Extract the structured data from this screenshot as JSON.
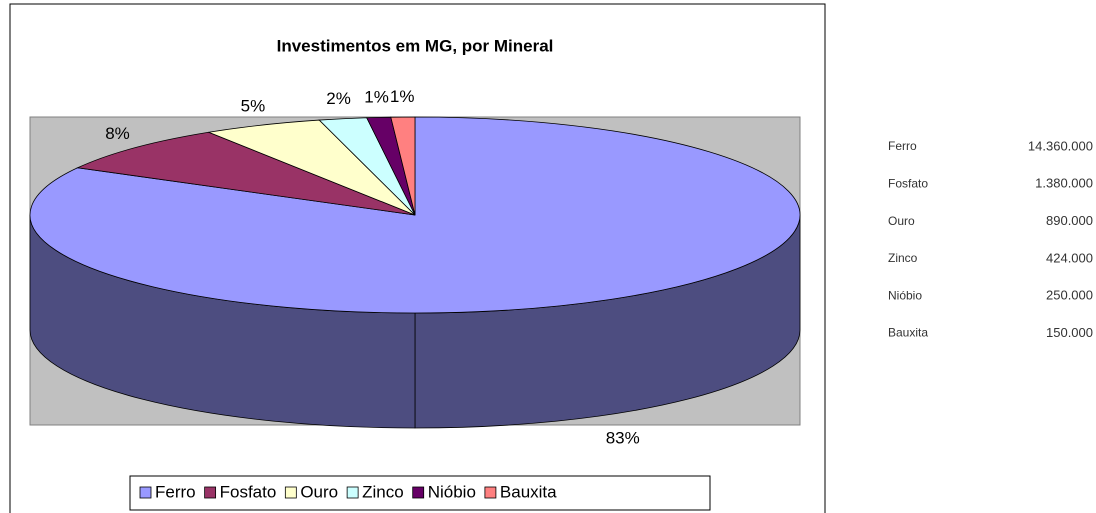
{
  "chart_data": {
    "type": "pie",
    "title": "Investimentos em MG, por Mineral",
    "categories": [
      "Ferro",
      "Fosfato",
      "Ouro",
      "Zinco",
      "Nióbio",
      "Bauxita"
    ],
    "values": [
      83,
      8,
      5,
      2,
      1,
      1
    ],
    "value_labels": [
      "83%",
      "8%",
      "5%",
      "2%",
      "1%",
      "1%"
    ],
    "colors": [
      "#9999ff",
      "#993366",
      "#ffffcc",
      "#ccffff",
      "#660066",
      "#ff8080"
    ],
    "legend": "bottom"
  },
  "table": {
    "rows": [
      [
        "Ferro",
        "14.360.000"
      ],
      [
        "Fosfato",
        "1.380.000"
      ],
      [
        "Ouro",
        "890.000"
      ],
      [
        "Zinco",
        "424.000"
      ],
      [
        "Nióbio",
        "250.000"
      ],
      [
        "Bauxita",
        "150.000"
      ]
    ]
  }
}
